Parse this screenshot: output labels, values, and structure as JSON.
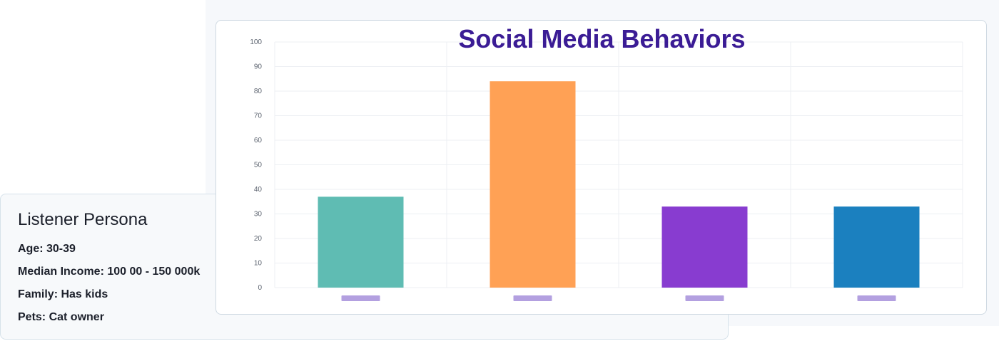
{
  "persona": {
    "title": "Listener Persona",
    "age": "Age: 30-39",
    "income": "Median Income: 100 00 - 150 000k",
    "family": "Family: Has kids",
    "pets": "Pets:  Cat owner"
  },
  "chart_data": {
    "type": "bar",
    "title": "Social Media Behaviors",
    "categories": [
      "",
      "",
      "",
      ""
    ],
    "values": [
      37,
      84,
      33,
      33
    ],
    "bar_colors": [
      "#5fbcb3",
      "#ffa155",
      "#883cd0",
      "#1b80bf"
    ],
    "legend_color": "#b3a0e0",
    "ylim": [
      0,
      100
    ],
    "yticks": [
      "0",
      "10",
      "20",
      "30",
      "40",
      "50",
      "60",
      "70",
      "80",
      "90",
      "100"
    ],
    "xlabel": "",
    "ylabel": "",
    "grid": true
  }
}
